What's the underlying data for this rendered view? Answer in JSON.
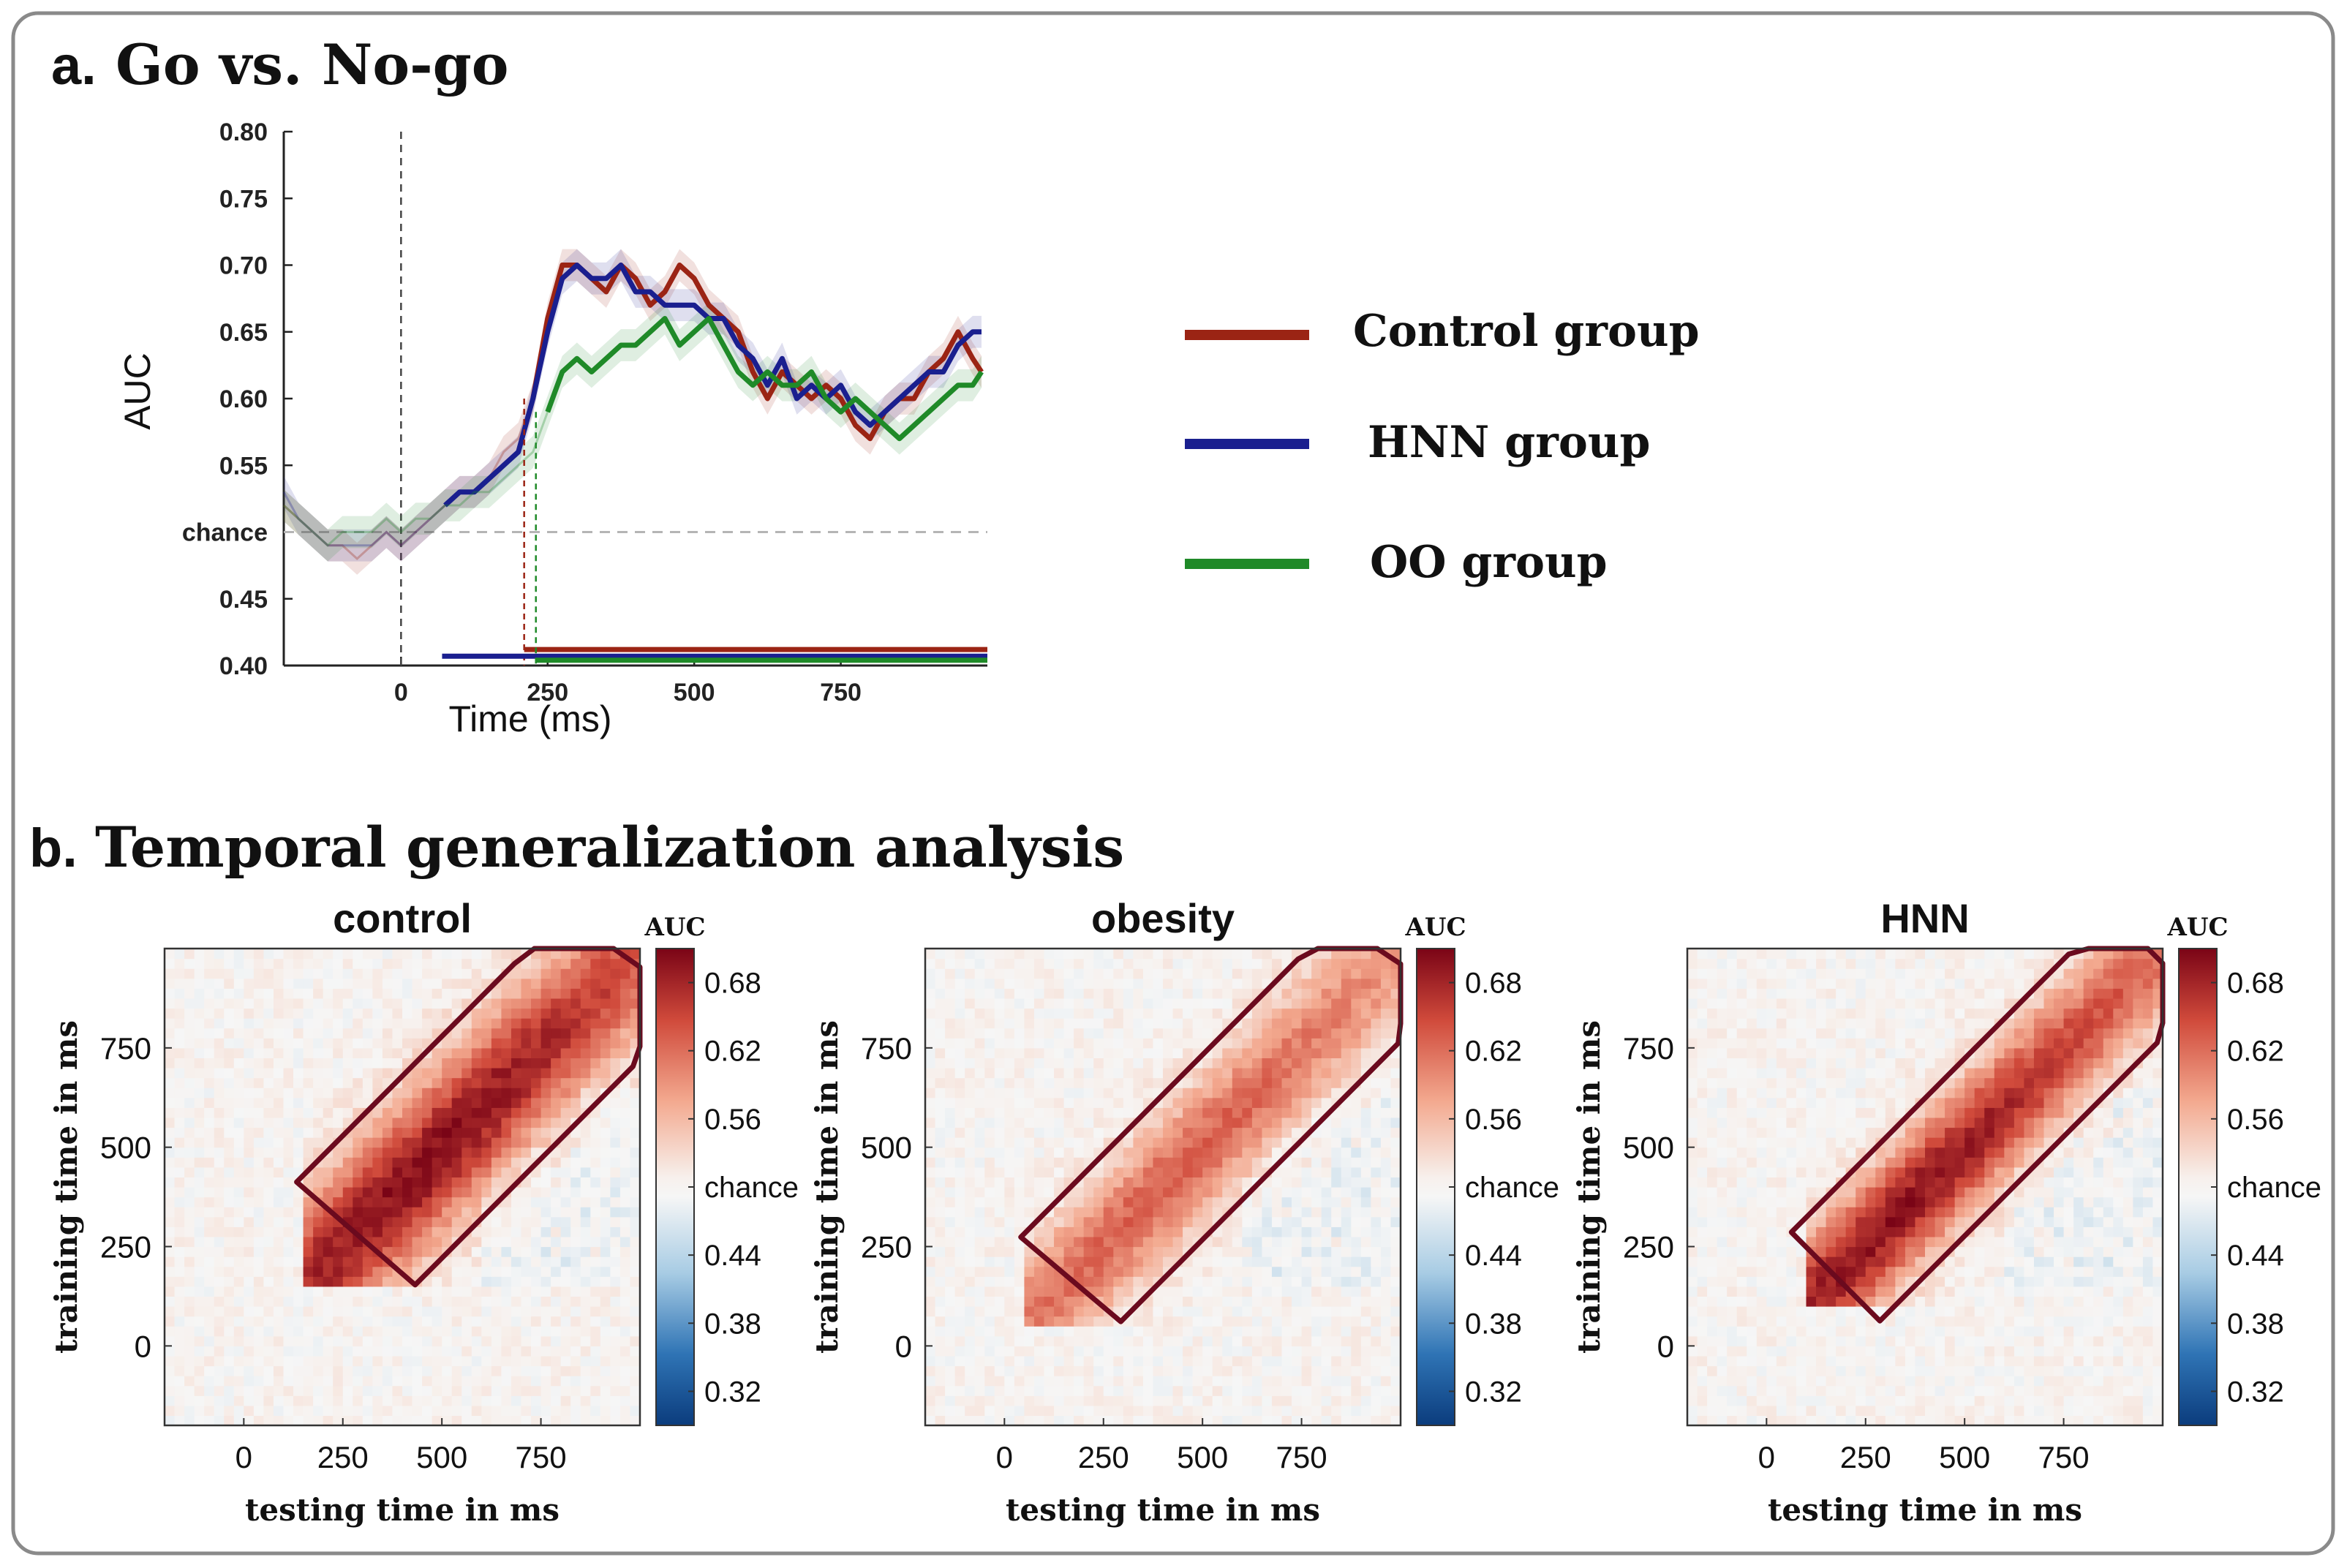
{
  "panel_a": {
    "letter": "a.",
    "title": "Go vs. No-go",
    "xlabel": "Time (ms)",
    "ylabel": "AUC",
    "chance_label": "chance",
    "x_ticks": [
      0,
      250,
      500,
      750
    ],
    "y_ticks": [
      "0.40",
      "0.45",
      "chance",
      "0.55",
      "0.60",
      "0.65",
      "0.70",
      "0.75",
      "0.80"
    ],
    "legend": [
      {
        "label": "Control group",
        "color": "#9b2414"
      },
      {
        "label": "HNN group",
        "color": "#1a1f8f"
      },
      {
        "label": "OO group",
        "color": "#1f8a28"
      }
    ]
  },
  "panel_b": {
    "letter": "b.",
    "title": "Temporal generalization analysis",
    "xlabel": "testing time in ms",
    "ylabel": "training time in ms",
    "colorbar_title": "AUC",
    "colorbar_ticks": [
      "0.68",
      "0.62",
      "0.56",
      "chance",
      "0.44",
      "0.38",
      "0.32"
    ],
    "x_ticks": [
      0,
      250,
      500,
      750
    ],
    "y_ticks": [
      750,
      500,
      250,
      0
    ],
    "maps": [
      {
        "title": "control"
      },
      {
        "title": "obesity"
      },
      {
        "title": "HNN"
      }
    ]
  },
  "chart_data": [
    {
      "type": "line",
      "title": "Go vs. No-go",
      "xlabel": "Time (ms)",
      "ylabel": "AUC",
      "xlim": [
        -200,
        1000
      ],
      "ylim": [
        0.4,
        0.8
      ],
      "chance": 0.5,
      "series": [
        {
          "name": "Control group",
          "color": "#9b2414",
          "x": [
            -200,
            -175,
            -150,
            -125,
            -100,
            -75,
            -50,
            -25,
            0,
            25,
            50,
            75,
            100,
            125,
            150,
            175,
            200,
            225,
            250,
            275,
            300,
            325,
            350,
            375,
            400,
            425,
            450,
            475,
            500,
            525,
            550,
            575,
            600,
            625,
            650,
            675,
            700,
            725,
            750,
            775,
            800,
            825,
            850,
            875,
            900,
            925,
            950,
            975,
            990
          ],
          "y": [
            0.52,
            0.51,
            0.5,
            0.49,
            0.49,
            0.48,
            0.49,
            0.5,
            0.49,
            0.5,
            0.51,
            0.52,
            0.53,
            0.53,
            0.54,
            0.56,
            0.57,
            0.6,
            0.66,
            0.7,
            0.7,
            0.69,
            0.68,
            0.7,
            0.69,
            0.67,
            0.68,
            0.7,
            0.69,
            0.67,
            0.66,
            0.65,
            0.62,
            0.6,
            0.62,
            0.61,
            0.6,
            0.61,
            0.6,
            0.58,
            0.57,
            0.59,
            0.6,
            0.6,
            0.62,
            0.63,
            0.65,
            0.63,
            0.62
          ],
          "significant_from": 210
        },
        {
          "name": "HNN group",
          "color": "#1a1f8f",
          "x": [
            -200,
            -175,
            -150,
            -125,
            -100,
            -75,
            -50,
            -25,
            0,
            25,
            50,
            75,
            100,
            125,
            150,
            175,
            200,
            225,
            250,
            275,
            300,
            325,
            350,
            375,
            400,
            425,
            450,
            475,
            500,
            525,
            550,
            575,
            600,
            625,
            650,
            675,
            700,
            725,
            750,
            775,
            800,
            825,
            850,
            875,
            900,
            925,
            950,
            975,
            990
          ],
          "y": [
            0.53,
            0.51,
            0.5,
            0.49,
            0.49,
            0.49,
            0.49,
            0.5,
            0.49,
            0.5,
            0.51,
            0.52,
            0.53,
            0.53,
            0.54,
            0.55,
            0.56,
            0.6,
            0.65,
            0.69,
            0.7,
            0.69,
            0.69,
            0.7,
            0.68,
            0.68,
            0.67,
            0.67,
            0.67,
            0.66,
            0.66,
            0.64,
            0.63,
            0.61,
            0.63,
            0.6,
            0.61,
            0.6,
            0.61,
            0.59,
            0.58,
            0.59,
            0.6,
            0.61,
            0.62,
            0.62,
            0.64,
            0.65,
            0.65
          ],
          "significant_from": 70
        },
        {
          "name": "OO group",
          "color": "#1f8a28",
          "x": [
            -200,
            -175,
            -150,
            -125,
            -100,
            -75,
            -50,
            -25,
            0,
            25,
            50,
            75,
            100,
            125,
            150,
            175,
            200,
            225,
            250,
            275,
            300,
            325,
            350,
            375,
            400,
            425,
            450,
            475,
            500,
            525,
            550,
            575,
            600,
            625,
            650,
            675,
            700,
            725,
            750,
            775,
            800,
            825,
            850,
            875,
            900,
            925,
            950,
            975,
            990
          ],
          "y": [
            0.52,
            0.51,
            0.5,
            0.49,
            0.5,
            0.5,
            0.5,
            0.51,
            0.5,
            0.51,
            0.51,
            0.52,
            0.52,
            0.53,
            0.53,
            0.54,
            0.55,
            0.56,
            0.59,
            0.62,
            0.63,
            0.62,
            0.63,
            0.64,
            0.64,
            0.65,
            0.66,
            0.64,
            0.65,
            0.66,
            0.64,
            0.62,
            0.61,
            0.62,
            0.61,
            0.61,
            0.62,
            0.6,
            0.59,
            0.6,
            0.59,
            0.58,
            0.57,
            0.58,
            0.59,
            0.6,
            0.61,
            0.61,
            0.62
          ],
          "significant_from": 230
        }
      ]
    },
    {
      "type": "heatmap",
      "title": "control",
      "xlabel": "testing time in ms",
      "ylabel": "training time in ms",
      "xlim": [
        -200,
        1000
      ],
      "ylim": [
        -200,
        1000
      ],
      "clim": [
        0.29,
        0.71
      ],
      "peak": {
        "train": 460,
        "test": 480,
        "auc": 0.7
      },
      "significant_region": "diagonal cluster from ~150 ms to ~1000 ms"
    },
    {
      "type": "heatmap",
      "title": "obesity",
      "xlabel": "testing time in ms",
      "ylabel": "training time in ms",
      "xlim": [
        -200,
        1000
      ],
      "ylim": [
        -200,
        1000
      ],
      "clim": [
        0.29,
        0.71
      ],
      "peak": {
        "train": 420,
        "test": 440,
        "auc": 0.66
      },
      "significant_region": "diagonal cluster from ~50 ms to ~1000 ms"
    },
    {
      "type": "heatmap",
      "title": "HNN",
      "xlabel": "testing time in ms",
      "ylabel": "training time in ms",
      "xlim": [
        -200,
        1000
      ],
      "ylim": [
        -200,
        1000
      ],
      "clim": [
        0.29,
        0.71
      ],
      "peak": {
        "train": 330,
        "test": 330,
        "auc": 0.7
      },
      "significant_region": "diagonal cluster from ~80 ms to ~1000 ms"
    }
  ]
}
